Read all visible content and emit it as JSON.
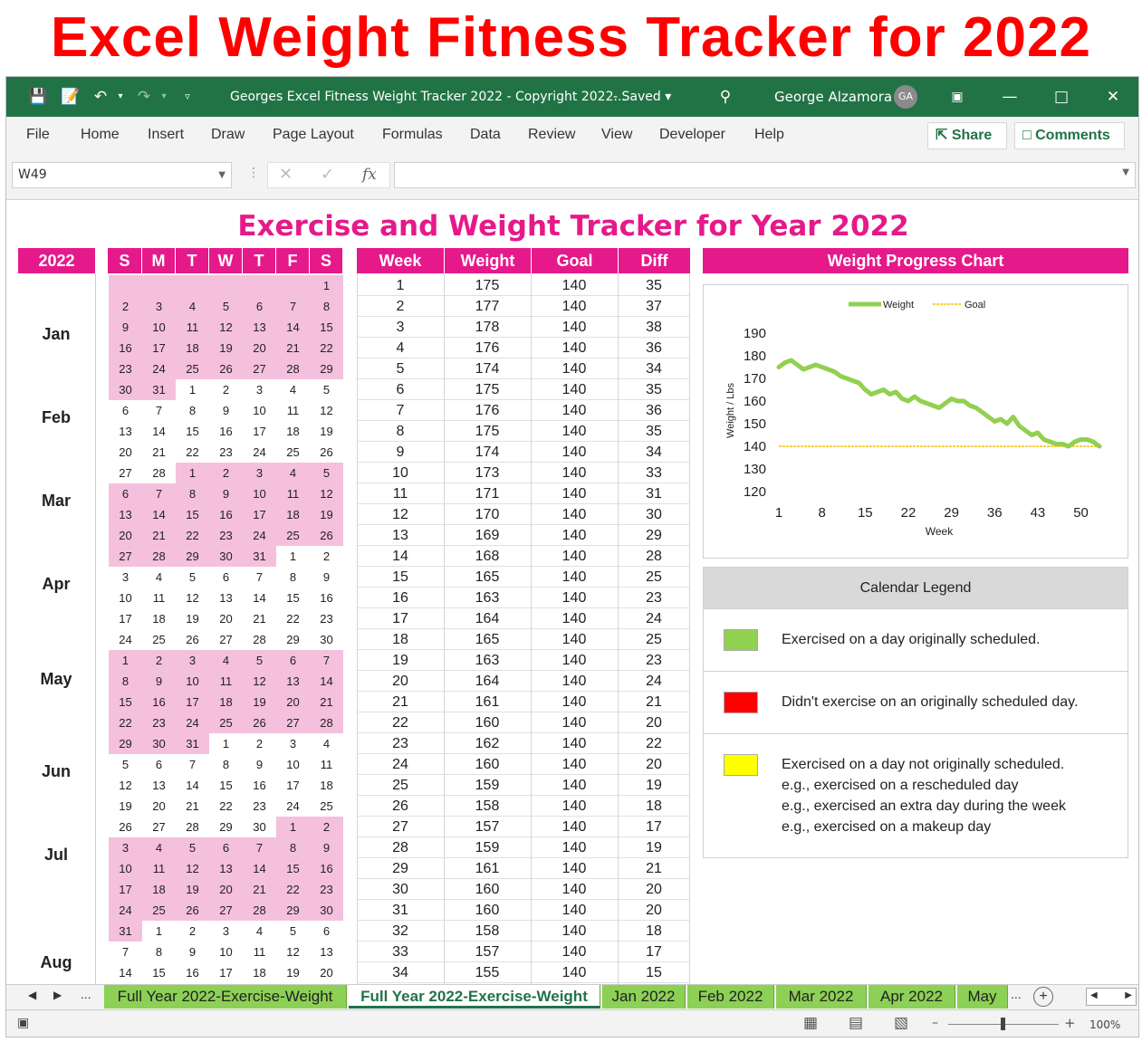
{
  "banner": "Excel Weight Fitness Tracker for 2022",
  "window": {
    "doc_title": "Georges Excel Fitness Weight Tracker 2022 - Copyright 2022...",
    "saved": "Saved",
    "user": "George Alzamora",
    "initials": "GA"
  },
  "menu": {
    "items": [
      "File",
      "Home",
      "Insert",
      "Draw",
      "Page Layout",
      "Formulas",
      "Data",
      "Review",
      "View",
      "Developer",
      "Help"
    ],
    "share": "Share",
    "comments": "Comments"
  },
  "formula_bar": {
    "name_box": "W49",
    "fx": "fx"
  },
  "sheet": {
    "title": "Exercise and Weight Tracker for Year 2022",
    "year": "2022",
    "days": [
      "S",
      "M",
      "T",
      "W",
      "T",
      "F",
      "S"
    ],
    "months": [
      "Jan",
      "Feb",
      "Mar",
      "Apr",
      "May",
      "Jun",
      "Jul",
      "Aug"
    ],
    "calendar_rows": [
      [
        "",
        "",
        "",
        "",
        "",
        "",
        "1"
      ],
      [
        "2",
        "3",
        "4",
        "5",
        "6",
        "7",
        "8"
      ],
      [
        "9",
        "10",
        "11",
        "12",
        "13",
        "14",
        "15"
      ],
      [
        "16",
        "17",
        "18",
        "19",
        "20",
        "21",
        "22"
      ],
      [
        "23",
        "24",
        "25",
        "26",
        "27",
        "28",
        "29"
      ],
      [
        "30",
        "31",
        "1",
        "2",
        "3",
        "4",
        "5"
      ],
      [
        "6",
        "7",
        "8",
        "9",
        "10",
        "11",
        "12"
      ],
      [
        "13",
        "14",
        "15",
        "16",
        "17",
        "18",
        "19"
      ],
      [
        "20",
        "21",
        "22",
        "23",
        "24",
        "25",
        "26"
      ],
      [
        "27",
        "28",
        "1",
        "2",
        "3",
        "4",
        "5"
      ],
      [
        "6",
        "7",
        "8",
        "9",
        "10",
        "11",
        "12"
      ],
      [
        "13",
        "14",
        "15",
        "16",
        "17",
        "18",
        "19"
      ],
      [
        "20",
        "21",
        "22",
        "23",
        "24",
        "25",
        "26"
      ],
      [
        "27",
        "28",
        "29",
        "30",
        "31",
        "1",
        "2"
      ],
      [
        "3",
        "4",
        "5",
        "6",
        "7",
        "8",
        "9"
      ],
      [
        "10",
        "11",
        "12",
        "13",
        "14",
        "15",
        "16"
      ],
      [
        "17",
        "18",
        "19",
        "20",
        "21",
        "22",
        "23"
      ],
      [
        "24",
        "25",
        "26",
        "27",
        "28",
        "29",
        "30"
      ],
      [
        "1",
        "2",
        "3",
        "4",
        "5",
        "6",
        "7"
      ],
      [
        "8",
        "9",
        "10",
        "11",
        "12",
        "13",
        "14"
      ],
      [
        "15",
        "16",
        "17",
        "18",
        "19",
        "20",
        "21"
      ],
      [
        "22",
        "23",
        "24",
        "25",
        "26",
        "27",
        "28"
      ],
      [
        "29",
        "30",
        "31",
        "1",
        "2",
        "3",
        "4"
      ],
      [
        "5",
        "6",
        "7",
        "8",
        "9",
        "10",
        "11"
      ],
      [
        "12",
        "13",
        "14",
        "15",
        "16",
        "17",
        "18"
      ],
      [
        "19",
        "20",
        "21",
        "22",
        "23",
        "24",
        "25"
      ],
      [
        "26",
        "27",
        "28",
        "29",
        "30",
        "1",
        "2"
      ],
      [
        "3",
        "4",
        "5",
        "6",
        "7",
        "8",
        "9"
      ],
      [
        "10",
        "11",
        "12",
        "13",
        "14",
        "15",
        "16"
      ],
      [
        "17",
        "18",
        "19",
        "20",
        "21",
        "22",
        "23"
      ],
      [
        "24",
        "25",
        "26",
        "27",
        "28",
        "29",
        "30"
      ],
      [
        "31",
        "1",
        "2",
        "3",
        "4",
        "5",
        "6"
      ],
      [
        "7",
        "8",
        "9",
        "10",
        "11",
        "12",
        "13"
      ],
      [
        "14",
        "15",
        "16",
        "17",
        "18",
        "19",
        "20"
      ]
    ],
    "table_headers": [
      "Week",
      "Weight",
      "Goal",
      "Diff"
    ],
    "table_rows": [
      [
        "1",
        "175",
        "140",
        "35"
      ],
      [
        "2",
        "177",
        "140",
        "37"
      ],
      [
        "3",
        "178",
        "140",
        "38"
      ],
      [
        "4",
        "176",
        "140",
        "36"
      ],
      [
        "5",
        "174",
        "140",
        "34"
      ],
      [
        "6",
        "175",
        "140",
        "35"
      ],
      [
        "7",
        "176",
        "140",
        "36"
      ],
      [
        "8",
        "175",
        "140",
        "35"
      ],
      [
        "9",
        "174",
        "140",
        "34"
      ],
      [
        "10",
        "173",
        "140",
        "33"
      ],
      [
        "11",
        "171",
        "140",
        "31"
      ],
      [
        "12",
        "170",
        "140",
        "30"
      ],
      [
        "13",
        "169",
        "140",
        "29"
      ],
      [
        "14",
        "168",
        "140",
        "28"
      ],
      [
        "15",
        "165",
        "140",
        "25"
      ],
      [
        "16",
        "163",
        "140",
        "23"
      ],
      [
        "17",
        "164",
        "140",
        "24"
      ],
      [
        "18",
        "165",
        "140",
        "25"
      ],
      [
        "19",
        "163",
        "140",
        "23"
      ],
      [
        "20",
        "164",
        "140",
        "24"
      ],
      [
        "21",
        "161",
        "140",
        "21"
      ],
      [
        "22",
        "160",
        "140",
        "20"
      ],
      [
        "23",
        "162",
        "140",
        "22"
      ],
      [
        "24",
        "160",
        "140",
        "20"
      ],
      [
        "25",
        "159",
        "140",
        "19"
      ],
      [
        "26",
        "158",
        "140",
        "18"
      ],
      [
        "27",
        "157",
        "140",
        "17"
      ],
      [
        "28",
        "159",
        "140",
        "19"
      ],
      [
        "29",
        "161",
        "140",
        "21"
      ],
      [
        "30",
        "160",
        "140",
        "20"
      ],
      [
        "31",
        "160",
        "140",
        "20"
      ],
      [
        "32",
        "158",
        "140",
        "18"
      ],
      [
        "33",
        "157",
        "140",
        "17"
      ],
      [
        "34",
        "155",
        "140",
        "15"
      ]
    ],
    "chart_header": "Weight Progress Chart",
    "legend_header": "Calendar Legend",
    "legend": [
      {
        "color": "#92d050",
        "lines": [
          "Exercised on a day originally scheduled."
        ]
      },
      {
        "color": "#ff0000",
        "lines": [
          "Didn't exercise on an originally scheduled day."
        ]
      },
      {
        "color": "#ffff00",
        "lines": [
          "Exercised on a day not originally scheduled.",
          "e.g., exercised on a rescheduled day",
          "e.g., exercised an extra day during the week",
          "e.g., exercised on a makeup day"
        ]
      }
    ]
  },
  "chart_data": {
    "type": "line",
    "title": "",
    "xlabel": "Week",
    "ylabel": "Weight / Lbs",
    "xlim": [
      1,
      53
    ],
    "ylim": [
      120,
      190
    ],
    "xticks": [
      1,
      8,
      15,
      22,
      29,
      36,
      43,
      50
    ],
    "yticks": [
      120,
      130,
      140,
      150,
      160,
      170,
      180,
      190
    ],
    "legend_position": "top",
    "series": [
      {
        "name": "Weight",
        "color": "#92d050",
        "x": [
          1,
          2,
          3,
          4,
          5,
          6,
          7,
          8,
          9,
          10,
          11,
          12,
          13,
          14,
          15,
          16,
          17,
          18,
          19,
          20,
          21,
          22,
          23,
          24,
          25,
          26,
          27,
          28,
          29,
          30,
          31,
          32,
          33,
          34,
          35,
          36,
          37,
          38,
          39,
          40,
          41,
          42,
          43,
          44,
          45,
          46,
          47,
          48,
          49,
          50,
          51,
          52,
          53
        ],
        "values": [
          175,
          177,
          178,
          176,
          174,
          175,
          176,
          175,
          174,
          173,
          171,
          170,
          169,
          168,
          165,
          163,
          164,
          165,
          163,
          164,
          161,
          160,
          162,
          160,
          159,
          158,
          157,
          159,
          161,
          160,
          160,
          158,
          157,
          155,
          153,
          151,
          152,
          150,
          153,
          149,
          147,
          145,
          146,
          143,
          142,
          141,
          141,
          140,
          142,
          143,
          143,
          142,
          140
        ]
      },
      {
        "name": "Goal",
        "color": "#f2c200",
        "x": [
          1,
          53
        ],
        "values": [
          140,
          140
        ]
      }
    ]
  },
  "tabs": {
    "items": [
      "Full Year 2022-Exercise-Weight",
      "Full Year 2022-Exercise-Weight",
      "Jan 2022",
      "Feb 2022",
      "Mar 2022",
      "Apr 2022",
      "May"
    ],
    "active_index": 1,
    "more": "..."
  },
  "status": {
    "zoom": "100%"
  }
}
